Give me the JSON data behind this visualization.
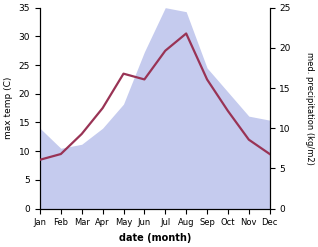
{
  "months": [
    "Jan",
    "Feb",
    "Mar",
    "Apr",
    "May",
    "Jun",
    "Jul",
    "Aug",
    "Sep",
    "Oct",
    "Nov",
    "Dec"
  ],
  "temp": [
    8.5,
    9.5,
    13.0,
    17.5,
    23.5,
    22.5,
    27.5,
    30.5,
    22.5,
    17.0,
    12.0,
    9.5
  ],
  "precip": [
    10.0,
    7.5,
    8.0,
    10.0,
    13.0,
    19.5,
    25.0,
    24.5,
    17.5,
    14.5,
    11.5,
    11.0
  ],
  "temp_color": "#993355",
  "precip_fill_color": "#c5cbee",
  "temp_ylim": [
    0,
    35
  ],
  "precip_ylim": [
    0,
    25
  ],
  "xlabel": "date (month)",
  "ylabel_left": "max temp (C)",
  "ylabel_right": "med. precipitation (kg/m2)",
  "background_color": "#ffffff",
  "temp_linewidth": 1.6,
  "left_yticks": [
    0,
    5,
    10,
    15,
    20,
    25,
    30,
    35
  ],
  "right_yticks": [
    0,
    5,
    10,
    15,
    20,
    25
  ]
}
